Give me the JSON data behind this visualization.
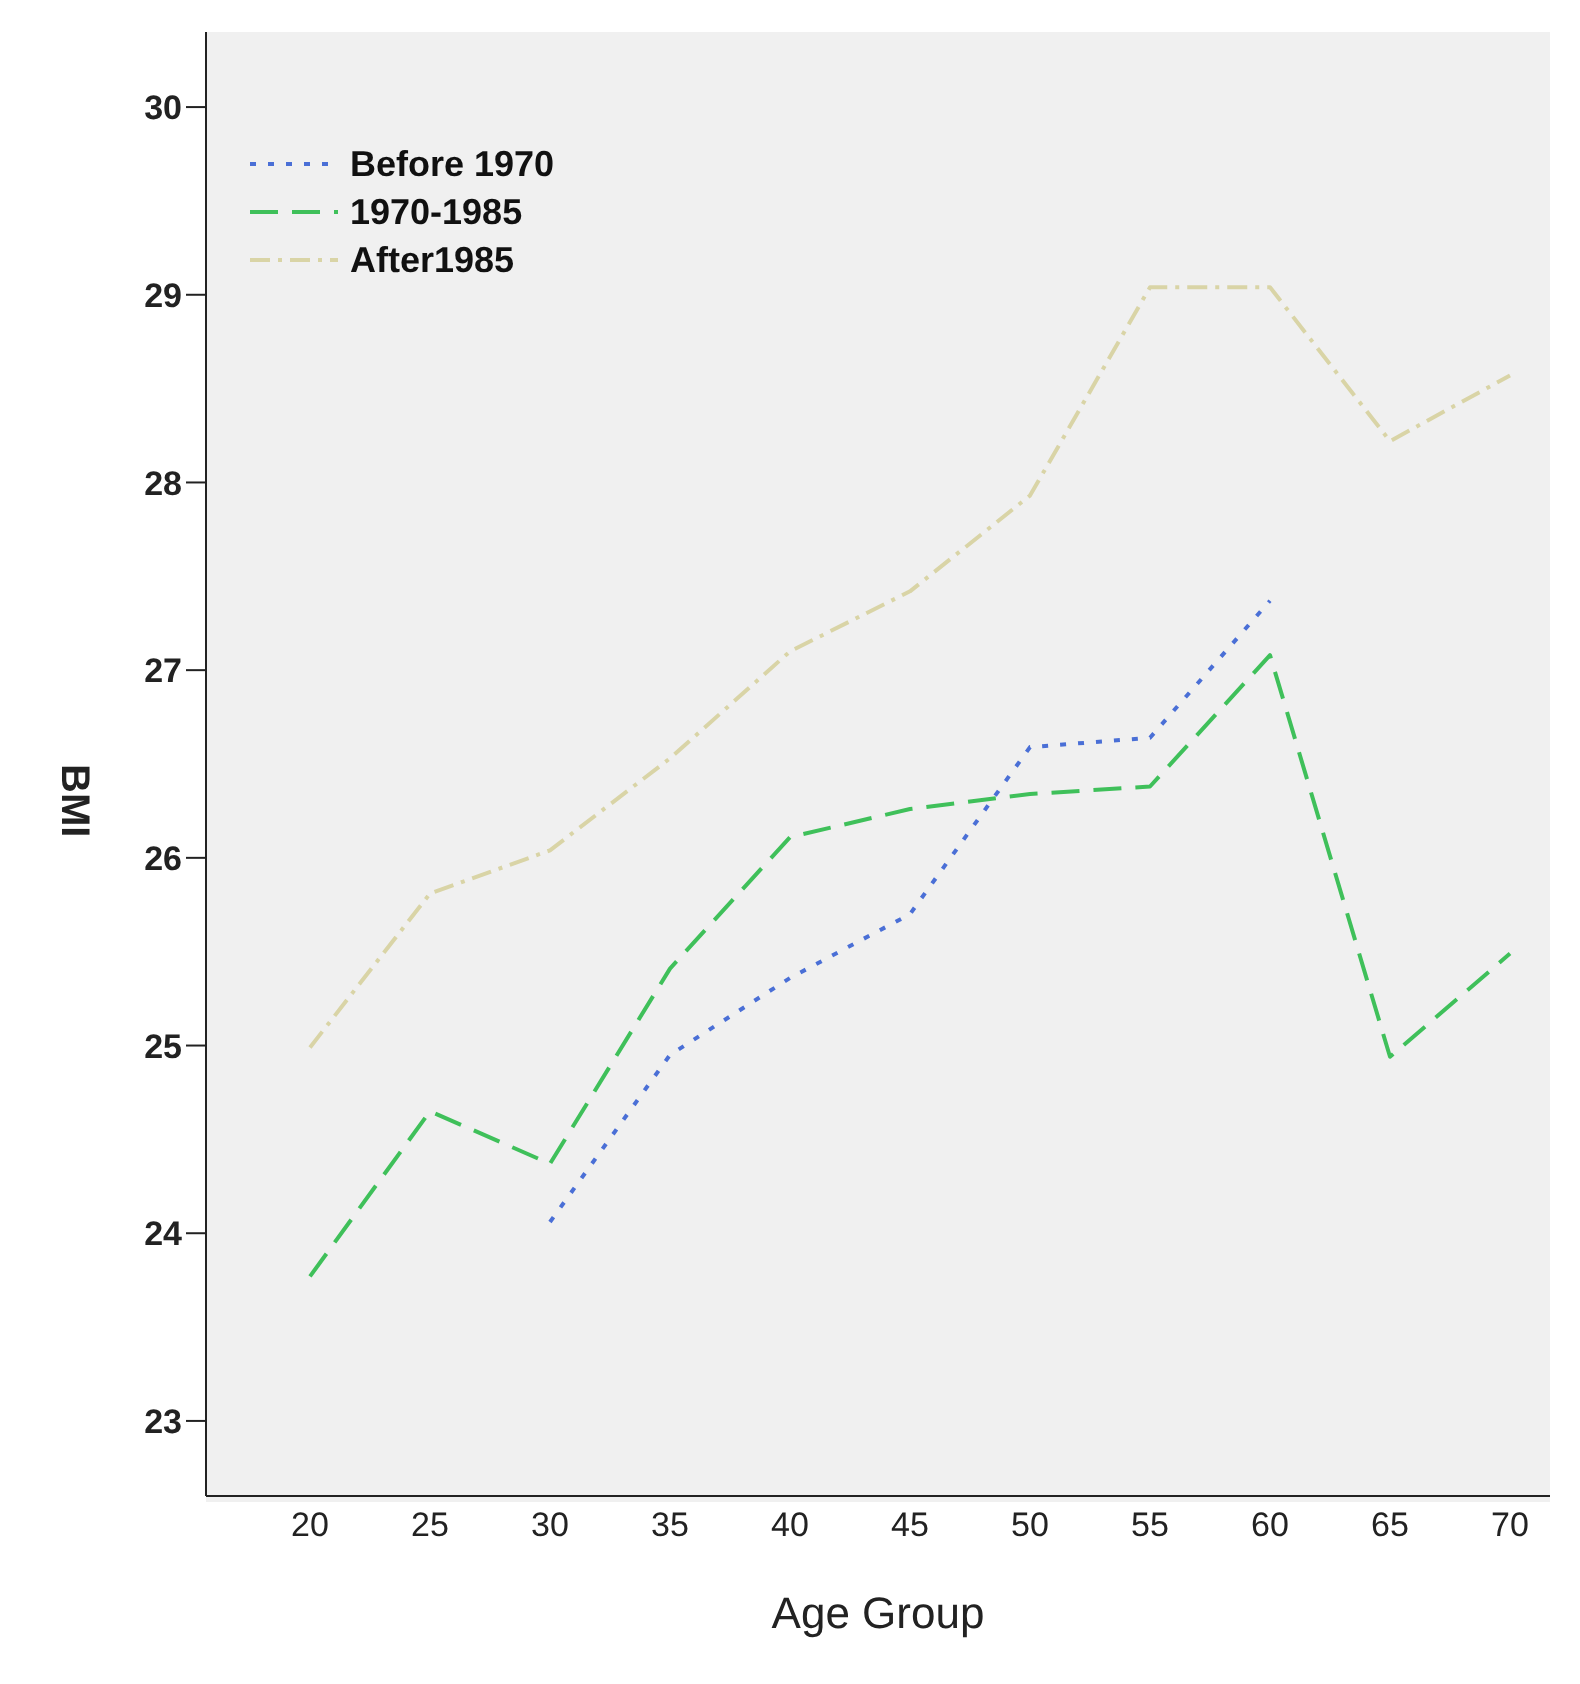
{
  "chart_data": {
    "type": "line",
    "xlabel": "Age Group",
    "ylabel": "BMI",
    "categories": [
      "20",
      "25",
      "30",
      "35",
      "40",
      "45",
      "50",
      "55",
      "60",
      "65",
      "70"
    ],
    "series": [
      {
        "name": "Before 1970",
        "color": "#4a6fd6",
        "line_style": "dotted",
        "values": [
          null,
          null,
          24.06,
          24.95,
          25.36,
          25.7,
          26.59,
          26.64,
          27.37,
          null,
          null
        ]
      },
      {
        "name": "1970-1985",
        "color": "#3fc05a",
        "line_style": "dashed",
        "values": [
          23.77,
          24.65,
          24.37,
          25.41,
          26.11,
          26.26,
          26.34,
          26.38,
          27.08,
          24.94,
          25.49
        ]
      },
      {
        "name": "After1985",
        "color": "#d9d4a6",
        "line_style": "dashdot",
        "values": [
          24.99,
          25.81,
          26.04,
          26.53,
          27.1,
          27.42,
          27.93,
          29.04,
          29.04,
          28.22,
          28.57
        ]
      }
    ],
    "ylim": [
      22.6,
      30.4
    ],
    "yticks": [
      23,
      24,
      25,
      26,
      27,
      28,
      29,
      30
    ],
    "grid": false,
    "legend": "top left",
    "marker": "none"
  }
}
